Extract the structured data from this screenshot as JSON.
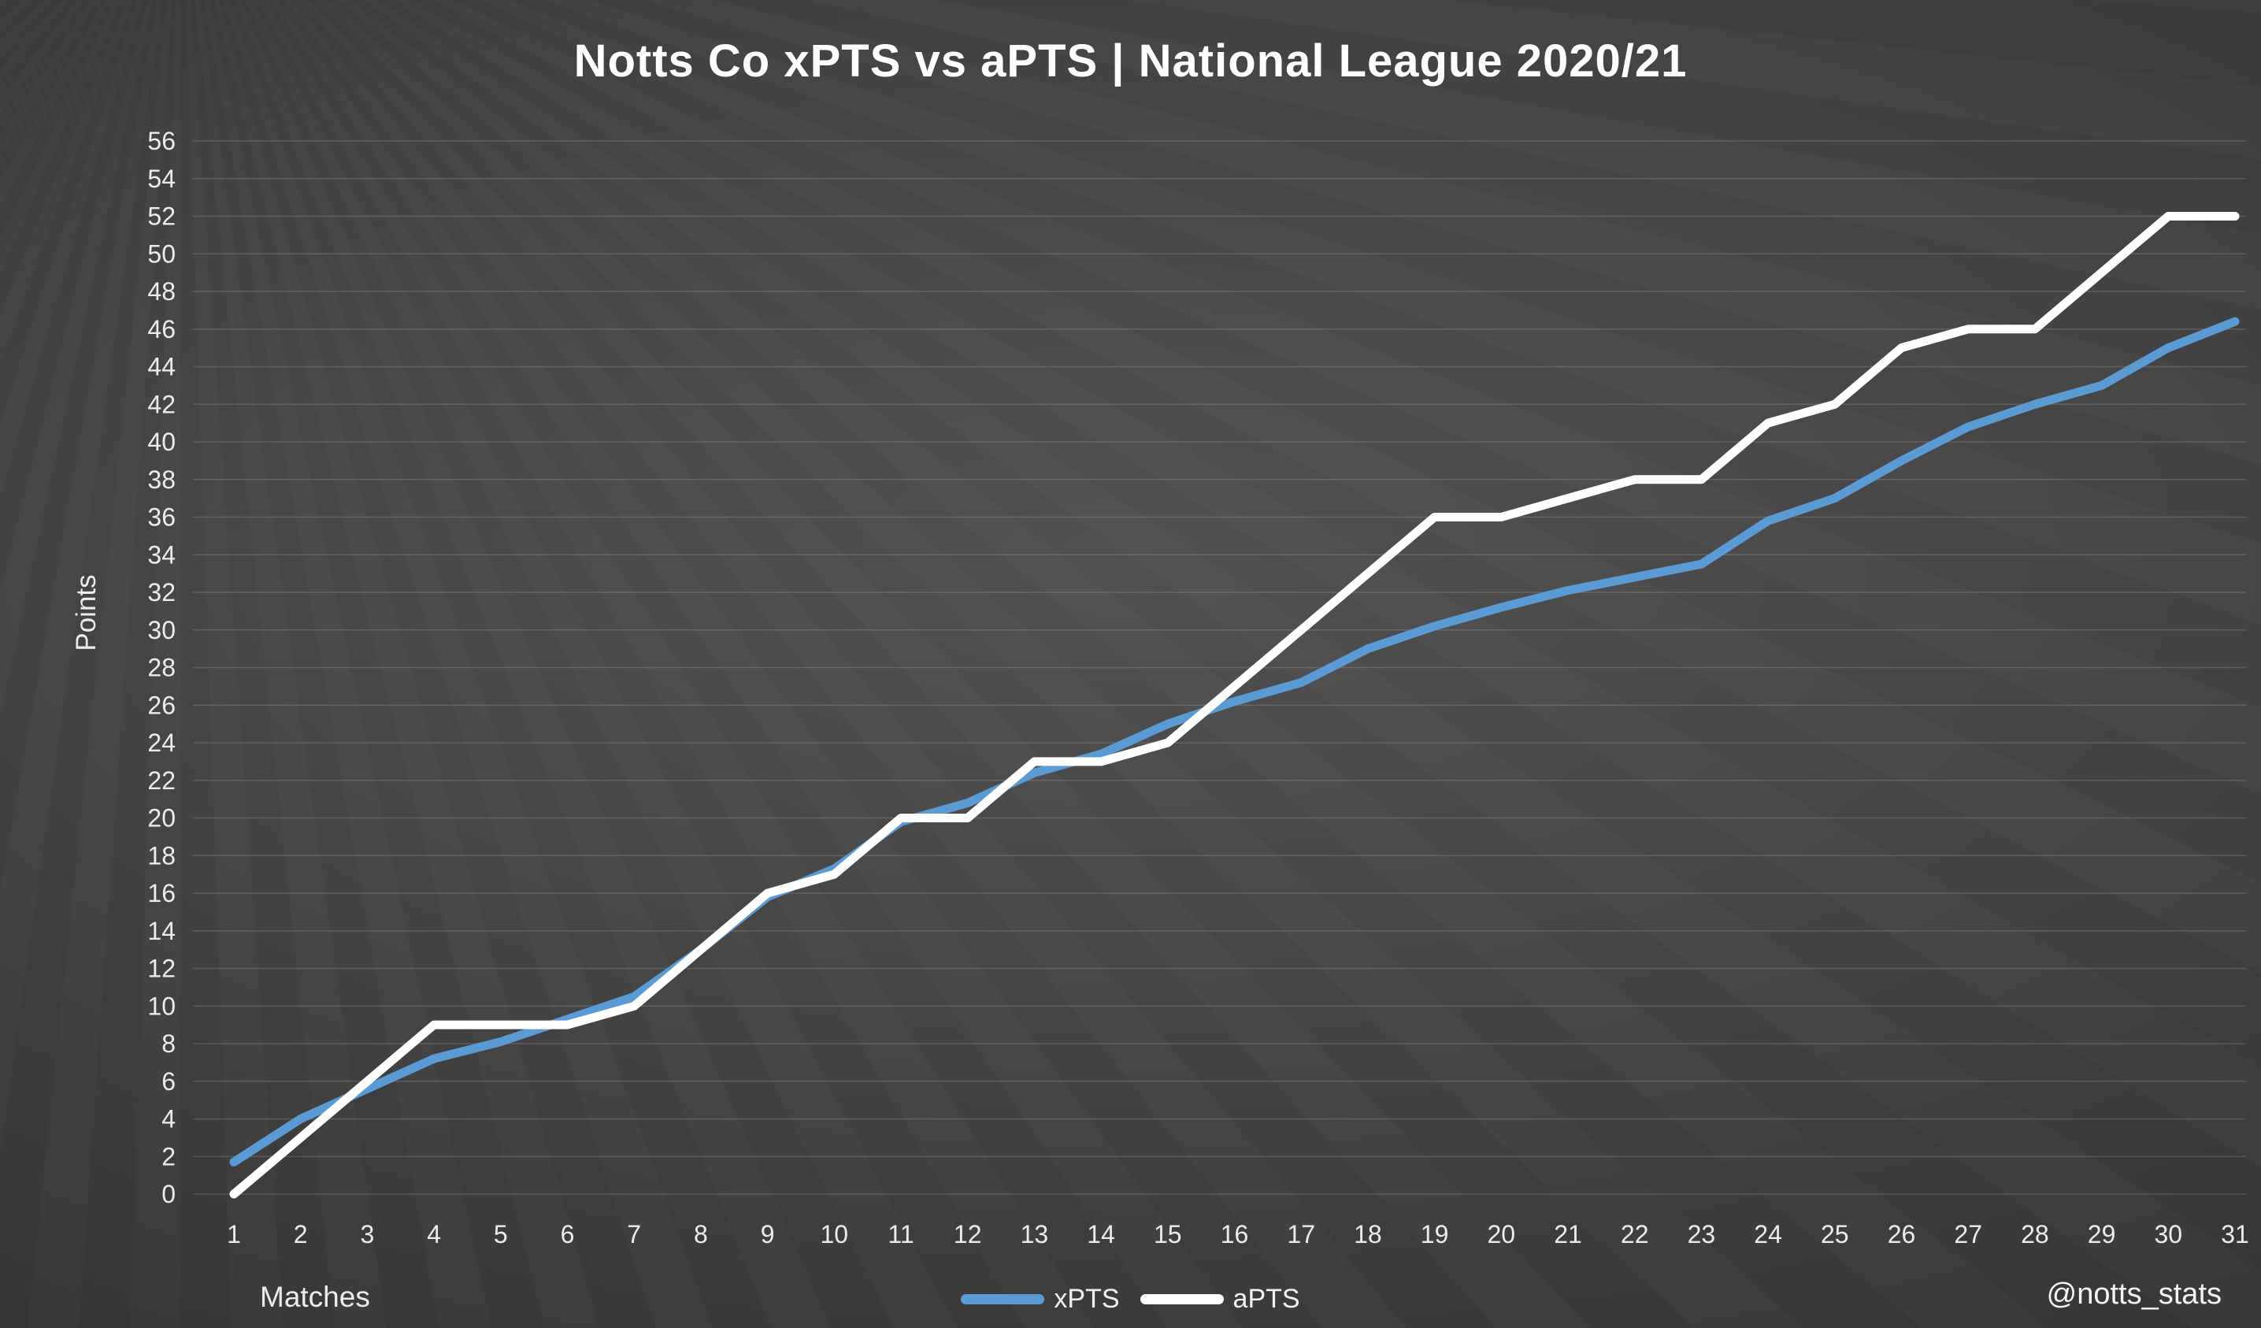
{
  "chart_data": {
    "type": "line",
    "title": "Notts Co xPTS vs aPTS | National League 2020/21",
    "xlabel": "Matches",
    "ylabel": "Points",
    "x": [
      1,
      2,
      3,
      4,
      5,
      6,
      7,
      8,
      9,
      10,
      11,
      12,
      13,
      14,
      15,
      16,
      17,
      18,
      19,
      20,
      21,
      22,
      23,
      24,
      25,
      26,
      27,
      28,
      29,
      30,
      31
    ],
    "series": [
      {
        "name": "xPTS",
        "color": "#5b9bd5",
        "values": [
          1.7,
          4.0,
          5.6,
          7.2,
          8.1,
          9.3,
          10.5,
          13.0,
          15.8,
          17.3,
          19.8,
          20.8,
          22.4,
          23.4,
          25.0,
          26.2,
          27.2,
          29.0,
          30.2,
          31.2,
          32.1,
          32.8,
          33.5,
          35.8,
          37.0,
          39.0,
          40.8,
          42.0,
          43.0,
          45.0,
          46.4
        ]
      },
      {
        "name": "aPTS",
        "color": "#ffffff",
        "values": [
          0,
          3,
          6,
          9,
          9,
          9,
          10,
          13,
          16,
          17,
          20,
          20,
          23,
          23,
          24,
          27,
          30,
          33,
          36,
          36,
          37,
          38,
          38,
          41,
          42,
          45,
          46,
          46,
          49,
          52,
          52
        ]
      }
    ],
    "ylim": [
      0,
      56
    ],
    "ytick_step": 2,
    "grid": true,
    "legend_position": "bottom-center"
  },
  "footer": {
    "credit": "@notts_stats"
  }
}
